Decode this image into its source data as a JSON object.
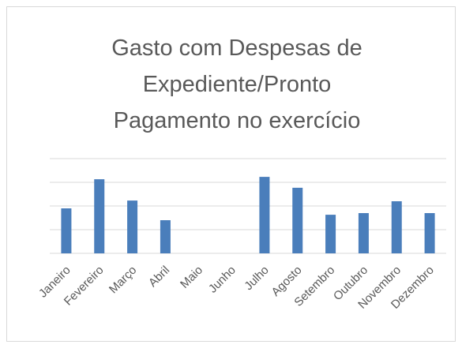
{
  "chart_data": {
    "type": "bar",
    "title": [
      "Gasto com Despesas de",
      "Expediente/Pronto",
      "Pagamento no exercício"
    ],
    "categories": [
      "Janeiro",
      "Fevereiro",
      "Março",
      "Abril",
      "Maio",
      "Junho",
      "Julho",
      "Agosto",
      "Setembro",
      "Outubro",
      "Novembro",
      "Dezembro"
    ],
    "values": [
      1.9,
      3.13,
      2.23,
      1.4,
      0,
      0,
      3.23,
      2.77,
      1.63,
      1.7,
      2.2,
      1.7
    ],
    "color": "#4a7ebb",
    "ylim": [
      0,
      4
    ],
    "yticks": [
      0,
      1,
      2,
      3,
      4
    ],
    "grid": true
  }
}
